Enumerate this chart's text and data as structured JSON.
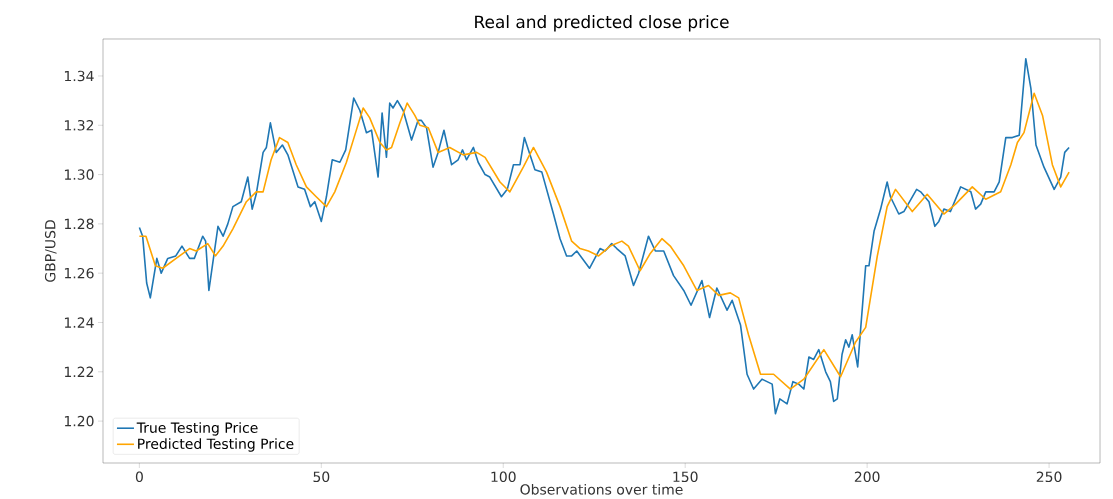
{
  "chart_data": {
    "type": "line",
    "title": "Real and predicted close price",
    "xlabel": "Observations over time",
    "ylabel": "GBP/USD",
    "xlim": [
      -10,
      264
    ],
    "ylim": [
      1.183,
      1.355
    ],
    "xticks": [
      0,
      50,
      100,
      150,
      200,
      250
    ],
    "yticks": [
      {
        "value": 1.2,
        "label": "1.20"
      },
      {
        "value": 1.22,
        "label": "1.22"
      },
      {
        "value": 1.24,
        "label": "1.24"
      },
      {
        "value": 1.26,
        "label": "1.26"
      },
      {
        "value": 1.28,
        "label": "1.28"
      },
      {
        "value": 1.3,
        "label": "1.30"
      },
      {
        "value": 1.32,
        "label": "1.32"
      },
      {
        "value": 1.34,
        "label": "1.34"
      }
    ],
    "grid": false,
    "legend": "bottom left",
    "marker": "none",
    "line_style": "solid",
    "series": [
      {
        "name": "True Testing Price",
        "color": "#1f77b4",
        "x": [
          0,
          0.9,
          2,
          3,
          4.8,
          6,
          7.8,
          10,
          11.7,
          13.8,
          15.1,
          17.4,
          18.2,
          19.1,
          21.6,
          23,
          24.3,
          25.7,
          28,
          29.8,
          31,
          32.1,
          34,
          34.9,
          36,
          37.6,
          39.3,
          40.8,
          43.6,
          45.4,
          47,
          48.2,
          50,
          51.4,
          53,
          55.1,
          56.7,
          58.9,
          60.6,
          62.4,
          63.8,
          65.6,
          66.7,
          67.9,
          68.8,
          69.7,
          70.9,
          72.5,
          74.8,
          76.6,
          77.5,
          78.9,
          80.7,
          82.1,
          83.7,
          85.8,
          87.6,
          88.8,
          89.9,
          91.8,
          93.1,
          95,
          96.3,
          99.5,
          101.1,
          102.8,
          104.6,
          105.8,
          108.7,
          110.6,
          113.8,
          115.6,
          117.4,
          118.8,
          120.2,
          123.7,
          126.6,
          128,
          129.8,
          131.2,
          133.5,
          135.8,
          137.2,
          139.9,
          141.8,
          144.1,
          146.8,
          149.6,
          151.6,
          154.6,
          156.7,
          158.7,
          161.5,
          162.9,
          165.2,
          167,
          168.8,
          171.1,
          173.9,
          174.8,
          176,
          178,
          179.6,
          181.2,
          182.6,
          184,
          185.3,
          186.7,
          188.6,
          189.9,
          190.8,
          191.8,
          193.1,
          194.1,
          195,
          195.9,
          197.4,
          198.2,
          199.6,
          200.5,
          201.9,
          203.7,
          205.5,
          206.4,
          208.7,
          210.1,
          213.6,
          214.7,
          217,
          218.6,
          219.7,
          221.1,
          222.9,
          225.7,
          228.5,
          229.8,
          231.2,
          232.6,
          234.9,
          236.3,
          238.1,
          239.9,
          241.8,
          243.6,
          245,
          246.4,
          248.6,
          251.4,
          253.2,
          254.3,
          255.5
        ],
        "values": [
          1.2785,
          1.275,
          1.256,
          1.25,
          1.266,
          1.26,
          1.266,
          1.267,
          1.271,
          1.266,
          1.266,
          1.275,
          1.273,
          1.253,
          1.279,
          1.275,
          1.28,
          1.287,
          1.289,
          1.299,
          1.286,
          1.292,
          1.309,
          1.311,
          1.321,
          1.309,
          1.312,
          1.308,
          1.295,
          1.294,
          1.287,
          1.289,
          1.281,
          1.291,
          1.306,
          1.305,
          1.31,
          1.331,
          1.326,
          1.317,
          1.318,
          1.299,
          1.325,
          1.307,
          1.329,
          1.327,
          1.33,
          1.326,
          1.314,
          1.322,
          1.322,
          1.319,
          1.303,
          1.309,
          1.318,
          1.304,
          1.306,
          1.31,
          1.306,
          1.311,
          1.305,
          1.3,
          1.299,
          1.291,
          1.294,
          1.304,
          1.304,
          1.315,
          1.302,
          1.301,
          1.284,
          1.274,
          1.267,
          1.267,
          1.269,
          1.262,
          1.27,
          1.269,
          1.272,
          1.27,
          1.267,
          1.255,
          1.26,
          1.275,
          1.269,
          1.269,
          1.259,
          1.253,
          1.247,
          1.257,
          1.242,
          1.254,
          1.245,
          1.249,
          1.239,
          1.219,
          1.213,
          1.217,
          1.215,
          1.203,
          1.209,
          1.207,
          1.216,
          1.215,
          1.213,
          1.226,
          1.225,
          1.229,
          1.22,
          1.216,
          1.208,
          1.209,
          1.227,
          1.233,
          1.23,
          1.235,
          1.222,
          1.237,
          1.263,
          1.263,
          1.277,
          1.286,
          1.297,
          1.291,
          1.284,
          1.285,
          1.294,
          1.293,
          1.289,
          1.279,
          1.281,
          1.286,
          1.285,
          1.295,
          1.293,
          1.286,
          1.288,
          1.293,
          1.293,
          1.297,
          1.315,
          1.315,
          1.316,
          1.347,
          1.335,
          1.312,
          1.303,
          1.294,
          1.299,
          1.309,
          1.311
        ]
      },
      {
        "name": "Predicted Testing Price",
        "color": "#ffa500",
        "x": [
          0,
          1.8,
          4.4,
          6.4,
          10.1,
          13.8,
          15.6,
          18.8,
          20.9,
          23,
          25.7,
          29.4,
          32.1,
          34,
          36.2,
          38.5,
          40.8,
          43.1,
          45.9,
          48.6,
          51.4,
          53.7,
          56.9,
          59.2,
          61.5,
          63.3,
          66.1,
          67.9,
          69.3,
          71.6,
          73.6,
          75.7,
          77.1,
          79.4,
          82.1,
          85.3,
          89,
          92.7,
          95,
          99.1,
          101.8,
          105.5,
          108.3,
          111.9,
          115.6,
          118.8,
          121.1,
          123.4,
          126.2,
          129.4,
          132.6,
          134.4,
          137.6,
          140.4,
          143.6,
          145.9,
          149.6,
          153.2,
          156.4,
          159.2,
          162.4,
          164.7,
          167.4,
          170.7,
          174.3,
          178.9,
          182.6,
          188.1,
          192.7,
          196.8,
          199.6,
          202.8,
          205.5,
          207.8,
          212.4,
          216.5,
          221.1,
          224.3,
          228.9,
          232.6,
          236.7,
          239.5,
          241.3,
          243.1,
          245.9,
          248.2,
          250.9,
          253.2,
          255.5
        ],
        "values": [
          1.275,
          1.275,
          1.263,
          1.262,
          1.266,
          1.27,
          1.269,
          1.272,
          1.267,
          1.271,
          1.278,
          1.289,
          1.293,
          1.293,
          1.306,
          1.315,
          1.313,
          1.304,
          1.295,
          1.291,
          1.287,
          1.293,
          1.305,
          1.316,
          1.327,
          1.323,
          1.313,
          1.31,
          1.311,
          1.321,
          1.329,
          1.324,
          1.32,
          1.319,
          1.309,
          1.311,
          1.308,
          1.309,
          1.307,
          1.297,
          1.293,
          1.303,
          1.311,
          1.301,
          1.287,
          1.273,
          1.27,
          1.269,
          1.267,
          1.271,
          1.273,
          1.271,
          1.261,
          1.268,
          1.274,
          1.271,
          1.263,
          1.253,
          1.255,
          1.251,
          1.252,
          1.25,
          1.235,
          1.219,
          1.219,
          1.213,
          1.217,
          1.229,
          1.218,
          1.232,
          1.238,
          1.267,
          1.287,
          1.294,
          1.285,
          1.292,
          1.284,
          1.288,
          1.295,
          1.29,
          1.293,
          1.304,
          1.313,
          1.317,
          1.333,
          1.324,
          1.304,
          1.295,
          1.301
        ]
      }
    ]
  }
}
